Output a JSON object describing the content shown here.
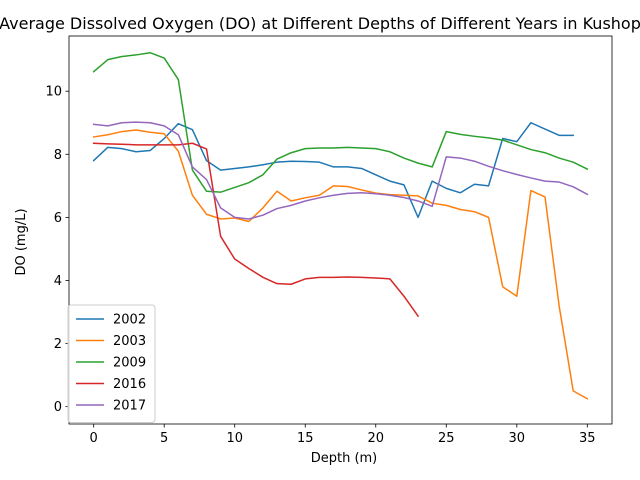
{
  "chart_data": {
    "type": "line",
    "title": "Average Dissolved Oxygen (DO) at Different Depths of Different Years in Kushop",
    "xlabel": "Depth (m)",
    "ylabel": "DO (mg/L)",
    "xlim": [
      -1.75,
      36.75
    ],
    "ylim": [
      -0.55,
      11.75
    ],
    "xticks": [
      0,
      5,
      10,
      15,
      20,
      25,
      30,
      35
    ],
    "yticks": [
      0,
      2,
      4,
      6,
      8,
      10
    ],
    "legend_position": "lower-left",
    "grid": false,
    "series": [
      {
        "name": "2002",
        "color": "#1f77b4",
        "x": [
          0,
          1,
          2,
          3,
          4,
          5,
          6,
          7,
          8,
          9,
          10,
          11,
          12,
          13,
          14,
          15,
          16,
          17,
          18,
          19,
          20,
          21,
          22,
          23,
          24,
          25,
          26,
          27,
          28,
          29,
          30,
          31,
          32,
          33,
          34
        ],
        "y": [
          7.8,
          8.22,
          8.18,
          8.08,
          8.12,
          8.5,
          8.97,
          8.78,
          7.8,
          7.5,
          7.55,
          7.6,
          7.67,
          7.75,
          7.78,
          7.77,
          7.75,
          7.6,
          7.6,
          7.55,
          7.35,
          7.15,
          7.03,
          6.0,
          7.15,
          6.92,
          6.78,
          7.05,
          7.0,
          8.5,
          8.4,
          9.0,
          8.8,
          8.6,
          8.6
        ]
      },
      {
        "name": "2003",
        "color": "#ff7f0e",
        "x": [
          0,
          1,
          2,
          3,
          4,
          5,
          6,
          7,
          8,
          9,
          10,
          11,
          12,
          13,
          14,
          15,
          16,
          17,
          18,
          19,
          20,
          21,
          22,
          23,
          24,
          25,
          26,
          27,
          28,
          29,
          30,
          31,
          32,
          33,
          34,
          35
        ],
        "y": [
          8.55,
          8.62,
          8.72,
          8.77,
          8.7,
          8.65,
          8.1,
          6.7,
          6.1,
          5.95,
          5.98,
          5.87,
          6.3,
          6.83,
          6.52,
          6.62,
          6.7,
          7.0,
          6.98,
          6.87,
          6.77,
          6.72,
          6.7,
          6.68,
          6.45,
          6.38,
          6.25,
          6.18,
          6.0,
          3.8,
          3.5,
          6.85,
          6.65,
          3.2,
          0.5,
          0.25
        ]
      },
      {
        "name": "2009",
        "color": "#2ca02c",
        "x": [
          0,
          1,
          2,
          3,
          4,
          5,
          6,
          7,
          8,
          9,
          10,
          11,
          12,
          13,
          14,
          15,
          16,
          17,
          18,
          19,
          20,
          21,
          22,
          23,
          24,
          25,
          26,
          27,
          28,
          29,
          30,
          31,
          32,
          33,
          34,
          35
        ],
        "y": [
          10.62,
          11.0,
          11.1,
          11.15,
          11.22,
          11.05,
          10.37,
          7.5,
          6.83,
          6.8,
          6.95,
          7.1,
          7.35,
          7.85,
          8.05,
          8.18,
          8.2,
          8.2,
          8.22,
          8.2,
          8.18,
          8.08,
          7.88,
          7.72,
          7.6,
          8.72,
          8.63,
          8.57,
          8.52,
          8.45,
          8.3,
          8.15,
          8.05,
          7.88,
          7.75,
          7.53
        ]
      },
      {
        "name": "2016",
        "color": "#d62728",
        "x": [
          0,
          1,
          2,
          3,
          4,
          5,
          6,
          7,
          8,
          9,
          10,
          11,
          12,
          13,
          14,
          15,
          16,
          17,
          18,
          19,
          20,
          21,
          22,
          23
        ],
        "y": [
          8.35,
          8.33,
          8.32,
          8.3,
          8.3,
          8.3,
          8.3,
          8.35,
          8.17,
          5.4,
          4.68,
          4.38,
          4.1,
          3.9,
          3.88,
          4.05,
          4.1,
          4.1,
          4.11,
          4.1,
          4.08,
          4.05,
          3.5,
          2.87
        ]
      },
      {
        "name": "2017",
        "color": "#9467bd",
        "x": [
          0,
          1,
          2,
          3,
          4,
          5,
          6,
          7,
          8,
          9,
          10,
          11,
          12,
          13,
          14,
          15,
          16,
          17,
          18,
          19,
          20,
          21,
          22,
          23,
          24,
          25,
          26,
          27,
          28,
          29,
          30,
          31,
          32,
          33,
          34,
          35
        ],
        "y": [
          8.95,
          8.9,
          9.0,
          9.02,
          9.0,
          8.9,
          8.62,
          7.6,
          7.2,
          6.3,
          6.0,
          5.95,
          6.07,
          6.28,
          6.38,
          6.52,
          6.62,
          6.7,
          6.76,
          6.78,
          6.75,
          6.7,
          6.63,
          6.52,
          6.35,
          7.92,
          7.88,
          7.78,
          7.62,
          7.48,
          7.36,
          7.25,
          7.15,
          7.12,
          6.97,
          6.73
        ]
      }
    ]
  }
}
